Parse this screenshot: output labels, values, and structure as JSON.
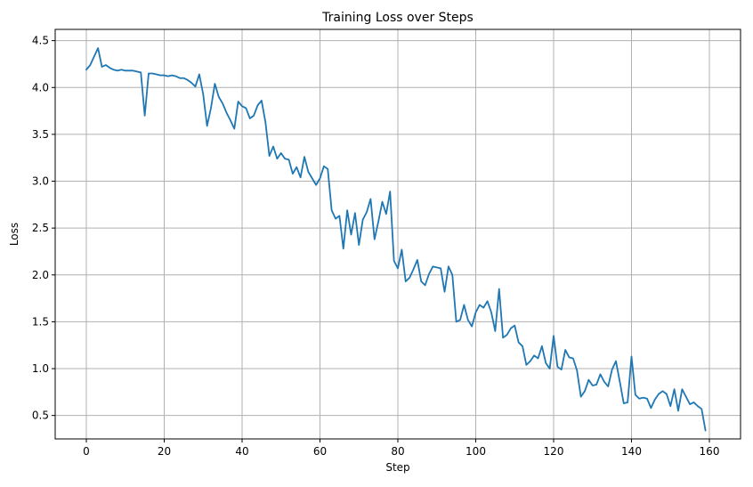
{
  "chart_data": {
    "type": "line",
    "title": "Training Loss over Steps",
    "xlabel": "Step",
    "ylabel": "Loss",
    "xlim": [
      -8,
      168
    ],
    "ylim": [
      0.25,
      4.62
    ],
    "xticks": [
      0,
      20,
      40,
      60,
      80,
      100,
      120,
      140,
      160
    ],
    "yticks": [
      0.5,
      1.0,
      1.5,
      2.0,
      2.5,
      3.0,
      3.5,
      4.0,
      4.5
    ],
    "ytick_labels": [
      "0.5",
      "1.0",
      "1.5",
      "2.0",
      "2.5",
      "3.0",
      "3.5",
      "4.0",
      "4.5"
    ],
    "grid": true,
    "line_color": "#1f77b4",
    "grid_color": "#b0b0b0",
    "series": [
      {
        "x": [
          0,
          1,
          2,
          3,
          4,
          5,
          6,
          7,
          8,
          9,
          10,
          11,
          12,
          13,
          14,
          15,
          16,
          17,
          18,
          19,
          20,
          21,
          22,
          23,
          24,
          25,
          26,
          27,
          28,
          29,
          30,
          31,
          32,
          33,
          34,
          35,
          36,
          37,
          38,
          39,
          40,
          41,
          42,
          43,
          44,
          45,
          46,
          47,
          48,
          49,
          50,
          51,
          52,
          53,
          54,
          55,
          56,
          57,
          58,
          59,
          60,
          61,
          62,
          63,
          64,
          65,
          66,
          67,
          68,
          69,
          70,
          71,
          72,
          73,
          74,
          75,
          76,
          77,
          78,
          79,
          80,
          81,
          82,
          83,
          84,
          85,
          86,
          87,
          88,
          89,
          90,
          91,
          92,
          93,
          94,
          95,
          96,
          97,
          98,
          99,
          100,
          101,
          102,
          103,
          104,
          105,
          106,
          107,
          108,
          109,
          110,
          111,
          112,
          113,
          114,
          115,
          116,
          117,
          118,
          119,
          120,
          121,
          122,
          123,
          124,
          125,
          126,
          127,
          128,
          129,
          130,
          131,
          132,
          133,
          134,
          135,
          136,
          137,
          138,
          139,
          140,
          141,
          142,
          143,
          144,
          145,
          146,
          147,
          148,
          149,
          150,
          151,
          152,
          153,
          154,
          155,
          156,
          157,
          158,
          159
        ],
        "values": [
          4.19,
          4.24,
          4.33,
          4.42,
          4.22,
          4.24,
          4.21,
          4.19,
          4.18,
          4.19,
          4.18,
          4.18,
          4.18,
          4.17,
          4.16,
          3.7,
          4.15,
          4.15,
          4.14,
          4.13,
          4.13,
          4.12,
          4.13,
          4.12,
          4.1,
          4.1,
          4.08,
          4.05,
          4.01,
          4.14,
          3.93,
          3.59,
          3.78,
          4.04,
          3.9,
          3.83,
          3.73,
          3.65,
          3.56,
          3.85,
          3.8,
          3.78,
          3.67,
          3.7,
          3.81,
          3.86,
          3.63,
          3.27,
          3.37,
          3.24,
          3.3,
          3.24,
          3.23,
          3.08,
          3.15,
          3.04,
          3.26,
          3.1,
          3.03,
          2.96,
          3.03,
          3.16,
          3.13,
          2.69,
          2.6,
          2.63,
          2.28,
          2.69,
          2.43,
          2.66,
          2.32,
          2.59,
          2.67,
          2.81,
          2.38,
          2.57,
          2.78,
          2.65,
          2.89,
          2.15,
          2.07,
          2.27,
          1.93,
          1.97,
          2.06,
          2.16,
          1.93,
          1.89,
          2.01,
          2.09,
          2.08,
          2.07,
          1.82,
          2.09,
          2.0,
          1.5,
          1.52,
          1.68,
          1.52,
          1.45,
          1.6,
          1.68,
          1.65,
          1.72,
          1.6,
          1.4,
          1.85,
          1.33,
          1.36,
          1.43,
          1.46,
          1.28,
          1.24,
          1.04,
          1.08,
          1.14,
          1.11,
          1.24,
          1.06,
          1.0,
          1.35,
          1.02,
          0.99,
          1.2,
          1.12,
          1.11,
          0.98,
          0.7,
          0.76,
          0.88,
          0.82,
          0.83,
          0.94,
          0.86,
          0.81,
          0.99,
          1.08,
          0.86,
          0.63,
          0.64,
          1.13,
          0.72,
          0.68,
          0.69,
          0.68,
          0.58,
          0.67,
          0.73,
          0.76,
          0.73,
          0.6,
          0.78,
          0.55,
          0.78,
          0.7,
          0.62,
          0.64,
          0.6,
          0.57,
          0.34
        ]
      }
    ]
  }
}
